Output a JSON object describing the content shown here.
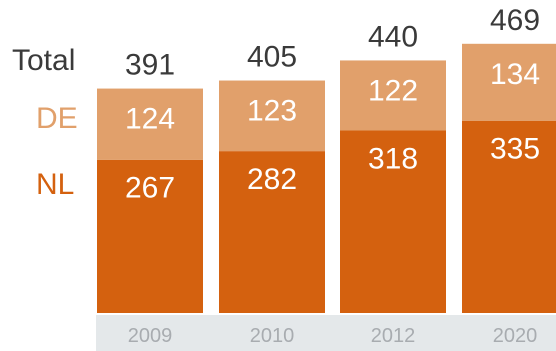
{
  "chart_data": {
    "type": "bar",
    "stacked": true,
    "categories": [
      "2009",
      "2010",
      "2012",
      "2020"
    ],
    "series": [
      {
        "name": "NL",
        "values": [
          267,
          282,
          318,
          335
        ],
        "color": "#d4610f"
      },
      {
        "name": "DE",
        "values": [
          124,
          123,
          122,
          134
        ],
        "color": "#e1a06b"
      }
    ],
    "totals_label": "Total",
    "totals": [
      391,
      405,
      440,
      469
    ],
    "colors": {
      "text_dark": "#3a3a3a",
      "label_on_bar": "#ffffff",
      "nl_legend": "#d4610f",
      "de_legend": "#e1a06b",
      "tick_text": "#a8acb0",
      "tick_band": "#e4e8ea"
    },
    "legend_position": "left",
    "grid": false
  }
}
